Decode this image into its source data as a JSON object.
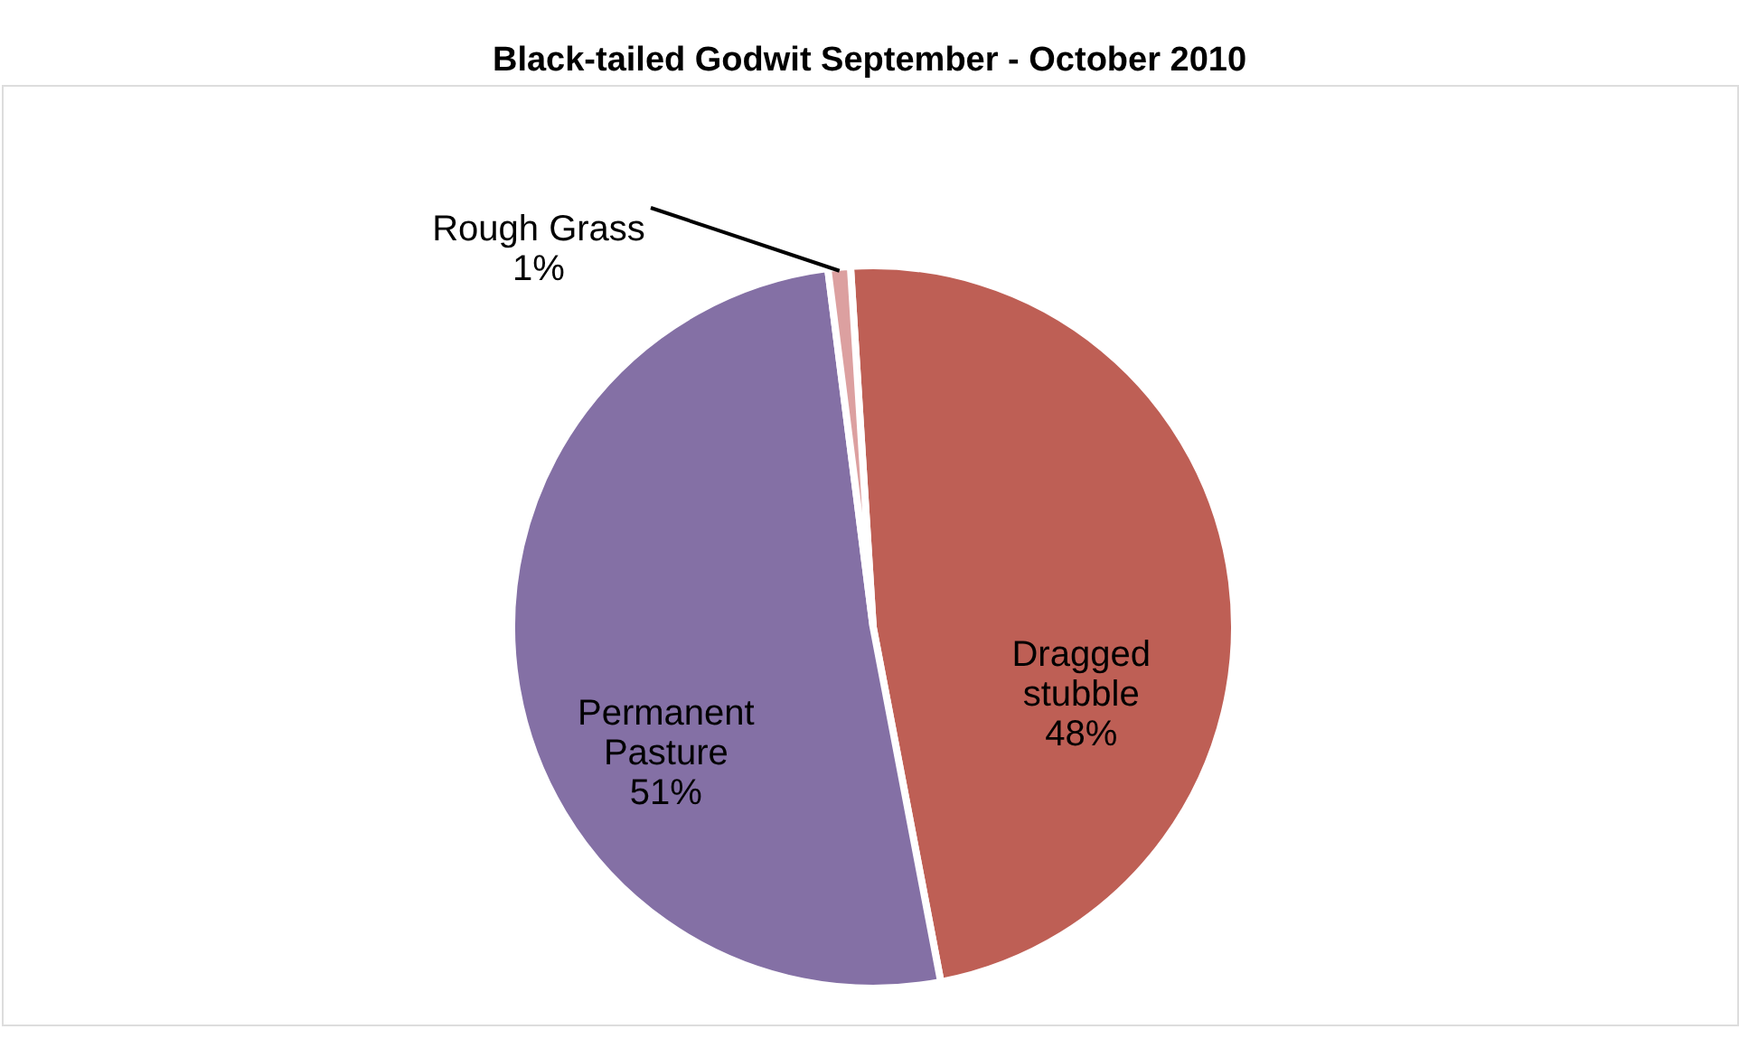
{
  "chart_data": {
    "type": "pie",
    "title": "Black-tailed Godwit September - October 2010",
    "categories": [
      "Dragged stubble",
      "Permanent Pasture",
      "Rough Grass"
    ],
    "values": [
      48,
      51,
      1
    ],
    "value_labels": [
      "48%",
      "51%",
      "1%"
    ],
    "colors": [
      "#be5f55",
      "#8470a5",
      "#dca0a0"
    ],
    "legend": false
  }
}
